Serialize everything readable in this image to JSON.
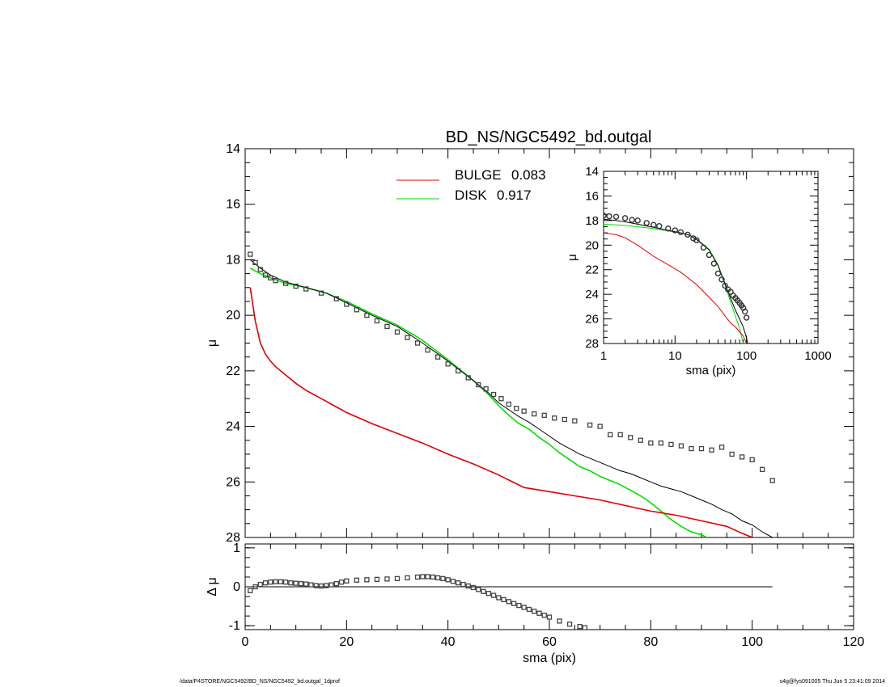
{
  "title": "BD_NS/NGC5492_bd.outgal",
  "footer_left": "/data/P4STORE/NGC5492/BD_NS/NGC5492_bd.outgal_1dprof",
  "footer_right": "s4g@fys091005  Thu Jun  5 23:41:09 2014",
  "legend": [
    {
      "label": "BULGE",
      "value": "0.083",
      "color": "#e00000"
    },
    {
      "label": "DISK",
      "value": "0.917",
      "color": "#00e000"
    }
  ],
  "colors": {
    "bulge": "#e00000",
    "disk": "#00e000",
    "model": "#000000",
    "data": "#555555"
  },
  "chart_data": [
    {
      "type": "line",
      "name": "main",
      "xlim": [
        0,
        120
      ],
      "ylim": [
        28,
        14
      ],
      "xticks": [
        0,
        20,
        40,
        60,
        80,
        100,
        120
      ],
      "yticks": [
        14,
        16,
        18,
        20,
        22,
        24,
        26,
        28
      ],
      "ylabel": "μ",
      "series": [
        {
          "role": "data",
          "style": "squares",
          "x": [
            1,
            2,
            3,
            4,
            5,
            6,
            8,
            10,
            12,
            15,
            18,
            20,
            22,
            24,
            26,
            28,
            30,
            32,
            34,
            36,
            38,
            40,
            42,
            44,
            46,
            47.5,
            49,
            50.5,
            52,
            53.5,
            55,
            57,
            59,
            61,
            63,
            65,
            68,
            70,
            72,
            74,
            76,
            78,
            80,
            82,
            84,
            86,
            88,
            90,
            92,
            94,
            96,
            98,
            100,
            102,
            104
          ],
          "y": [
            17.8,
            18.1,
            18.35,
            18.55,
            18.65,
            18.75,
            18.85,
            18.95,
            19.05,
            19.2,
            19.4,
            19.6,
            19.8,
            20.0,
            20.2,
            20.4,
            20.6,
            20.8,
            21.0,
            21.25,
            21.5,
            21.75,
            22.0,
            22.25,
            22.5,
            22.65,
            22.85,
            23.0,
            23.2,
            23.35,
            23.45,
            23.55,
            23.6,
            23.7,
            23.75,
            23.8,
            23.95,
            24.0,
            24.3,
            24.3,
            24.4,
            24.5,
            24.6,
            24.6,
            24.65,
            24.7,
            24.8,
            24.8,
            24.85,
            24.75,
            25.0,
            25.1,
            25.2,
            25.55,
            25.95
          ]
        },
        {
          "role": "model",
          "style": "line",
          "x": [
            1,
            2,
            3,
            5,
            8,
            12,
            16,
            20,
            25,
            30,
            35,
            40,
            45,
            48,
            50,
            52,
            54,
            56,
            58,
            60,
            62,
            64,
            66,
            68,
            70,
            72,
            74,
            76,
            78,
            80,
            82,
            84,
            86,
            88,
            90,
            92,
            94,
            96,
            98,
            100,
            102,
            104
          ],
          "y": [
            18.0,
            18.15,
            18.3,
            18.55,
            18.8,
            19.0,
            19.2,
            19.55,
            20.0,
            20.4,
            21.0,
            21.65,
            22.35,
            22.8,
            23.15,
            23.4,
            23.65,
            23.85,
            24.1,
            24.35,
            24.6,
            24.8,
            25.0,
            25.15,
            25.3,
            25.45,
            25.6,
            25.7,
            25.85,
            26.0,
            26.15,
            26.25,
            26.35,
            26.5,
            26.65,
            26.8,
            27.0,
            27.15,
            27.4,
            27.55,
            27.8,
            28.0
          ]
        },
        {
          "role": "disk",
          "style": "line",
          "x": [
            1,
            2,
            3,
            5,
            8,
            12,
            16,
            20,
            25,
            30,
            35,
            40,
            45,
            48,
            50,
            52,
            54,
            56,
            58,
            60,
            62,
            64,
            66,
            68,
            70,
            72,
            74,
            76,
            78,
            80,
            82,
            84,
            86,
            88,
            90,
            91
          ],
          "y": [
            18.3,
            18.4,
            18.5,
            18.65,
            18.85,
            19.0,
            19.2,
            19.5,
            19.95,
            20.35,
            20.9,
            21.6,
            22.35,
            22.85,
            23.25,
            23.6,
            23.9,
            24.1,
            24.4,
            24.65,
            24.95,
            25.2,
            25.45,
            25.6,
            25.8,
            25.95,
            26.1,
            26.3,
            26.5,
            26.75,
            27.05,
            27.35,
            27.6,
            27.8,
            27.9,
            28.0
          ]
        },
        {
          "role": "bulge",
          "style": "line",
          "x": [
            1,
            1.5,
            2,
            3,
            4,
            5,
            6,
            8,
            10,
            12,
            15,
            18,
            20,
            25,
            30,
            35,
            40,
            45,
            50,
            55,
            60,
            65,
            70,
            75,
            80,
            85,
            90,
            95,
            98,
            100
          ],
          "y": [
            19.0,
            19.6,
            20.2,
            21.0,
            21.4,
            21.65,
            21.85,
            22.15,
            22.45,
            22.7,
            23.0,
            23.3,
            23.5,
            23.9,
            24.25,
            24.6,
            25.0,
            25.35,
            25.75,
            26.2,
            26.35,
            26.5,
            26.65,
            26.85,
            27.05,
            27.2,
            27.4,
            27.6,
            27.85,
            28.0
          ]
        }
      ]
    },
    {
      "type": "line",
      "name": "residual",
      "xlim": [
        0,
        120
      ],
      "ylim": [
        -1.1,
        1.1
      ],
      "xticks": [
        0,
        20,
        40,
        60,
        80,
        100,
        120
      ],
      "yticks": [
        -1,
        0,
        1
      ],
      "xlabel": "sma (pix)",
      "ylabel": "Δ μ",
      "zero_line_xrange": [
        0,
        104
      ],
      "series": [
        {
          "role": "residual",
          "style": "squares",
          "x": [
            1,
            2,
            3,
            4,
            5,
            6,
            7,
            8,
            9,
            10,
            11,
            12,
            13,
            14,
            15,
            16,
            17,
            18,
            19,
            20,
            22,
            24,
            26,
            28,
            30,
            32,
            34,
            35,
            36,
            37,
            38,
            39,
            40,
            41,
            42,
            43,
            44,
            45,
            46,
            47,
            48,
            49,
            50,
            51,
            52,
            53,
            54,
            55,
            56,
            57,
            58,
            59,
            60,
            62,
            64,
            66,
            67
          ],
          "y": [
            -0.1,
            0.0,
            0.06,
            0.1,
            0.12,
            0.13,
            0.13,
            0.12,
            0.1,
            0.09,
            0.08,
            0.07,
            0.05,
            0.03,
            0.02,
            0.03,
            0.05,
            0.08,
            0.12,
            0.15,
            0.17,
            0.18,
            0.19,
            0.2,
            0.21,
            0.23,
            0.25,
            0.26,
            0.26,
            0.25,
            0.23,
            0.21,
            0.18,
            0.14,
            0.1,
            0.06,
            0.02,
            -0.02,
            -0.07,
            -0.12,
            -0.17,
            -0.22,
            -0.28,
            -0.33,
            -0.38,
            -0.43,
            -0.48,
            -0.53,
            -0.58,
            -0.63,
            -0.68,
            -0.73,
            -0.78,
            -0.88,
            -0.96,
            -1.02,
            -1.05
          ]
        }
      ]
    },
    {
      "type": "line",
      "name": "inset",
      "xscale": "log",
      "xlim": [
        1,
        1000
      ],
      "ylim": [
        28,
        14
      ],
      "xticks": [
        1,
        10,
        100,
        1000
      ],
      "yticks": [
        14,
        16,
        18,
        20,
        22,
        24,
        26,
        28
      ],
      "xlabel": "sma (pix)",
      "ylabel": "μ",
      "series": [
        {
          "role": "data",
          "style": "circles",
          "x": [
            1.0,
            1.2,
            1.5,
            2,
            2.5,
            3,
            4,
            5,
            6,
            8,
            10,
            12,
            15,
            18,
            20,
            25,
            30,
            35,
            40,
            45,
            50,
            55,
            60,
            65,
            70,
            75,
            80,
            85,
            90,
            95,
            100
          ],
          "y": [
            17.6,
            17.65,
            17.7,
            17.8,
            17.95,
            18.0,
            18.2,
            18.35,
            18.45,
            18.65,
            18.8,
            18.95,
            19.15,
            19.45,
            19.6,
            20.2,
            20.8,
            21.5,
            22.3,
            22.8,
            23.3,
            23.6,
            23.8,
            24.1,
            24.3,
            24.5,
            24.7,
            24.9,
            25.1,
            25.4,
            25.9
          ]
        },
        {
          "role": "model",
          "style": "line",
          "x": [
            1,
            1.5,
            2,
            3,
            5,
            8,
            12,
            16,
            20,
            25,
            30,
            40,
            50,
            60,
            70,
            80,
            90,
            100,
            104
          ],
          "y": [
            17.9,
            18.0,
            18.1,
            18.3,
            18.55,
            18.8,
            19.0,
            19.2,
            19.55,
            20.0,
            20.4,
            21.65,
            23.15,
            24.35,
            25.3,
            26.0,
            26.65,
            27.55,
            28.0
          ]
        },
        {
          "role": "disk",
          "style": "line",
          "x": [
            1,
            1.5,
            2,
            3,
            5,
            8,
            12,
            16,
            20,
            25,
            30,
            40,
            50,
            60,
            70,
            80,
            88,
            91
          ],
          "y": [
            18.3,
            18.35,
            18.4,
            18.5,
            18.65,
            18.85,
            19.0,
            19.2,
            19.5,
            19.95,
            20.35,
            21.6,
            23.25,
            24.65,
            25.8,
            26.75,
            27.8,
            28.0
          ]
        },
        {
          "role": "bulge",
          "style": "line",
          "x": [
            1,
            1.5,
            2,
            3,
            5,
            8,
            12,
            20,
            30,
            40,
            50,
            60,
            70,
            80,
            90,
            100
          ],
          "y": [
            19.0,
            19.15,
            19.4,
            20.0,
            20.9,
            21.6,
            22.2,
            23.2,
            24.25,
            25.0,
            25.75,
            26.35,
            26.65,
            27.05,
            27.4,
            28.0
          ]
        }
      ]
    }
  ]
}
